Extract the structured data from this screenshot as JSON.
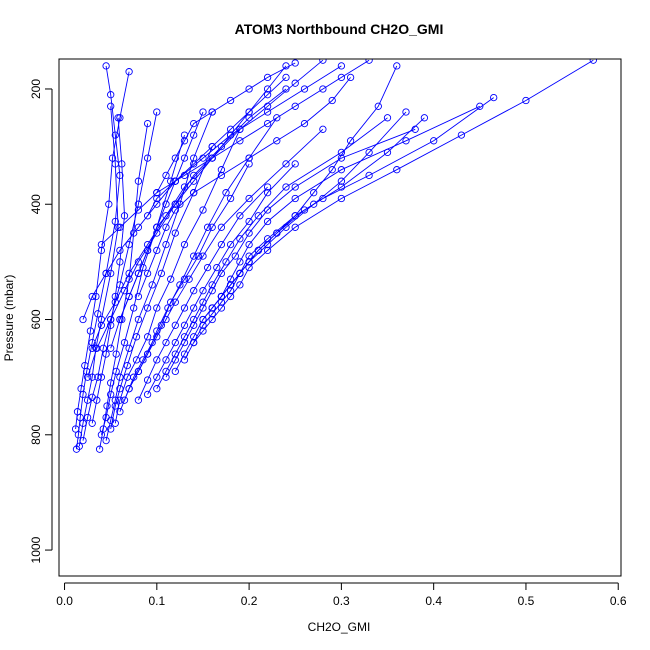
{
  "chart_data": {
    "type": "line",
    "title": "ATOM3 Northbound CH2O_GMI",
    "xlabel": "CH2O_GMI",
    "ylabel": "Pressure (mbar)",
    "xlim": [
      -0.006,
      0.603
    ],
    "ylim": [
      1045,
      148
    ],
    "y_reversed": true,
    "grid": false,
    "legend": "none",
    "x_ticks": [
      0.0,
      0.1,
      0.2,
      0.3,
      0.4,
      0.5,
      0.6
    ],
    "x_tick_labels": [
      "0.0",
      "0.1",
      "0.2",
      "0.3",
      "0.4",
      "0.5",
      "0.6"
    ],
    "y_ticks": [
      200,
      400,
      600,
      800,
      1000
    ],
    "y_tick_labels": [
      "200",
      "400",
      "600",
      "800",
      "1000"
    ],
    "series_color": "#0000ff",
    "marker": "open-circle",
    "series": [
      {
        "x": [
          0.013,
          0.015,
          0.017,
          0.02,
          0.024,
          0.03,
          0.036,
          0.045,
          0.055,
          0.06,
          0.055,
          0.05,
          0.045
        ],
        "y": [
          825,
          800,
          770,
          730,
          690,
          640,
          590,
          520,
          430,
          350,
          280,
          210,
          160
        ]
      },
      {
        "x": [
          0.012,
          0.014,
          0.018,
          0.022,
          0.028,
          0.034,
          0.04,
          0.048,
          0.052,
          0.06,
          0.07
        ],
        "y": [
          790,
          760,
          720,
          680,
          620,
          560,
          480,
          400,
          320,
          250,
          170
        ]
      },
      {
        "x": [
          0.016,
          0.02,
          0.025,
          0.03,
          0.034,
          0.04,
          0.05,
          0.058,
          0.055,
          0.05
        ],
        "y": [
          820,
          780,
          740,
          700,
          650,
          600,
          520,
          440,
          330,
          230
        ]
      },
      {
        "x": [
          0.02,
          0.025,
          0.03,
          0.036,
          0.042,
          0.05,
          0.06,
          0.07,
          0.08,
          0.09,
          0.1
        ],
        "y": [
          810,
          770,
          735,
          700,
          650,
          600,
          540,
          470,
          400,
          320,
          240
        ]
      },
      {
        "x": [
          0.03,
          0.035,
          0.04,
          0.045,
          0.05,
          0.055,
          0.06,
          0.065,
          0.062,
          0.058
        ],
        "y": [
          780,
          740,
          700,
          660,
          610,
          560,
          500,
          420,
          330,
          250
        ]
      },
      {
        "x": [
          0.038,
          0.042,
          0.046,
          0.05,
          0.056,
          0.062,
          0.07,
          0.075,
          0.08,
          0.09
        ],
        "y": [
          825,
          790,
          750,
          710,
          660,
          600,
          530,
          450,
          360,
          260
        ]
      },
      {
        "x": [
          0.04,
          0.045,
          0.05,
          0.056,
          0.065,
          0.075,
          0.085,
          0.1,
          0.115,
          0.13
        ],
        "y": [
          800,
          770,
          730,
          690,
          640,
          580,
          510,
          440,
          360,
          280
        ]
      },
      {
        "x": [
          0.045,
          0.05,
          0.055,
          0.06,
          0.07,
          0.08,
          0.095,
          0.11,
          0.125,
          0.14,
          0.16
        ],
        "y": [
          810,
          775,
          740,
          700,
          650,
          600,
          540,
          470,
          400,
          320,
          240
        ]
      },
      {
        "x": [
          0.05,
          0.055,
          0.06,
          0.068,
          0.078,
          0.09,
          0.105,
          0.12,
          0.14,
          0.16
        ],
        "y": [
          790,
          750,
          720,
          680,
          630,
          580,
          520,
          450,
          380,
          300
        ]
      },
      {
        "x": [
          0.055,
          0.06,
          0.068,
          0.078,
          0.09,
          0.1,
          0.115,
          0.13,
          0.15,
          0.17,
          0.19
        ],
        "y": [
          780,
          740,
          700,
          670,
          630,
          580,
          530,
          470,
          410,
          340,
          270
        ]
      },
      {
        "x": [
          0.06,
          0.07,
          0.08,
          0.09,
          0.1,
          0.112,
          0.125,
          0.14,
          0.155,
          0.175,
          0.2,
          0.23
        ],
        "y": [
          760,
          720,
          690,
          660,
          620,
          580,
          540,
          490,
          440,
          380,
          320,
          250
        ]
      },
      {
        "x": [
          0.065,
          0.075,
          0.085,
          0.095,
          0.105,
          0.115,
          0.13,
          0.145,
          0.16,
          0.18,
          0.2
        ],
        "y": [
          740,
          700,
          670,
          640,
          610,
          570,
          530,
          490,
          440,
          390,
          330
        ]
      },
      {
        "x": [
          0.07,
          0.08,
          0.09,
          0.1,
          0.11,
          0.12,
          0.135,
          0.15,
          0.17,
          0.2,
          0.24,
          0.28
        ],
        "y": [
          720,
          690,
          660,
          630,
          600,
          570,
          530,
          490,
          440,
          390,
          330,
          270
        ]
      },
      {
        "x": [
          0.08,
          0.09,
          0.1,
          0.11,
          0.12,
          0.13,
          0.14,
          0.155,
          0.17,
          0.19,
          0.22
        ],
        "y": [
          740,
          705,
          670,
          640,
          610,
          580,
          550,
          510,
          470,
          420,
          370
        ]
      },
      {
        "x": [
          0.09,
          0.1,
          0.11,
          0.12,
          0.13,
          0.14,
          0.15,
          0.165,
          0.18,
          0.2,
          0.22,
          0.25
        ],
        "y": [
          730,
          700,
          670,
          640,
          610,
          580,
          550,
          510,
          470,
          430,
          380,
          330
        ]
      },
      {
        "x": [
          0.1,
          0.11,
          0.12,
          0.13,
          0.14,
          0.15,
          0.16,
          0.175,
          0.19,
          0.21,
          0.24,
          0.3,
          0.35
        ],
        "y": [
          720,
          690,
          660,
          630,
          600,
          570,
          540,
          500,
          460,
          420,
          370,
          310,
          250
        ]
      },
      {
        "x": [
          0.11,
          0.12,
          0.13,
          0.14,
          0.15,
          0.16,
          0.17,
          0.185,
          0.2,
          0.22,
          0.25,
          0.3,
          0.38
        ],
        "y": [
          700,
          670,
          640,
          610,
          580,
          550,
          520,
          490,
          450,
          410,
          370,
          320,
          270
        ]
      },
      {
        "x": [
          0.12,
          0.13,
          0.14,
          0.15,
          0.16,
          0.17,
          0.18,
          0.19,
          0.2,
          0.22,
          0.25,
          0.3,
          0.37,
          0.45
        ],
        "y": [
          690,
          660,
          630,
          600,
          580,
          560,
          530,
          500,
          470,
          430,
          390,
          340,
          290,
          230
        ]
      },
      {
        "x": [
          0.13,
          0.14,
          0.15,
          0.16,
          0.17,
          0.18,
          0.19,
          0.2,
          0.22,
          0.25,
          0.28,
          0.33,
          0.4,
          0.465
        ],
        "y": [
          670,
          640,
          610,
          590,
          570,
          550,
          520,
          490,
          460,
          420,
          390,
          350,
          290,
          215
        ]
      },
      {
        "x": [
          0.14,
          0.15,
          0.16,
          0.17,
          0.18,
          0.19,
          0.2,
          0.22,
          0.25,
          0.3,
          0.36,
          0.43,
          0.5,
          0.573
        ],
        "y": [
          640,
          620,
          600,
          580,
          560,
          540,
          510,
          480,
          440,
          390,
          340,
          280,
          220,
          150
        ]
      },
      {
        "x": [
          0.15,
          0.16,
          0.17,
          0.18,
          0.19,
          0.2,
          0.21,
          0.23,
          0.26,
          0.3,
          0.35,
          0.39
        ],
        "y": [
          600,
          580,
          560,
          540,
          520,
          500,
          480,
          450,
          410,
          370,
          310,
          250
        ]
      },
      {
        "x": [
          0.16,
          0.17,
          0.18,
          0.19,
          0.2,
          0.22,
          0.24,
          0.27,
          0.3,
          0.33,
          0.37
        ],
        "y": [
          580,
          560,
          540,
          520,
          500,
          470,
          440,
          400,
          360,
          310,
          240
        ]
      },
      {
        "x": [
          0.17,
          0.18,
          0.19,
          0.2,
          0.21,
          0.23,
          0.25,
          0.27,
          0.29,
          0.31,
          0.34,
          0.36
        ],
        "y": [
          560,
          540,
          520,
          500,
          480,
          450,
          420,
          380,
          340,
          290,
          230,
          160
        ]
      },
      {
        "x": [
          0.02,
          0.03,
          0.045,
          0.06,
          0.08,
          0.1,
          0.12,
          0.15,
          0.18,
          0.22,
          0.26,
          0.3
        ],
        "y": [
          600,
          560,
          520,
          480,
          440,
          400,
          360,
          320,
          280,
          240,
          200,
          160
        ]
      },
      {
        "x": [
          0.03,
          0.04,
          0.055,
          0.07,
          0.09,
          0.11,
          0.13,
          0.16,
          0.19,
          0.22,
          0.25,
          0.28
        ],
        "y": [
          650,
          610,
          570,
          520,
          470,
          420,
          370,
          320,
          270,
          230,
          190,
          150
        ]
      },
      {
        "x": [
          0.025,
          0.035,
          0.05,
          0.065,
          0.08,
          0.1,
          0.12,
          0.14,
          0.17,
          0.2,
          0.24
        ],
        "y": [
          700,
          650,
          600,
          550,
          500,
          450,
          400,
          350,
          300,
          250,
          200
        ]
      },
      {
        "x": [
          0.05,
          0.06,
          0.07,
          0.08,
          0.09,
          0.1,
          0.11,
          0.12,
          0.13,
          0.14,
          0.15
        ],
        "y": [
          650,
          600,
          560,
          520,
          480,
          440,
          400,
          360,
          320,
          280,
          240
        ]
      },
      {
        "x": [
          0.06,
          0.07,
          0.08,
          0.09,
          0.1,
          0.12,
          0.14,
          0.16,
          0.18,
          0.2,
          0.22,
          0.24
        ],
        "y": [
          600,
          560,
          520,
          480,
          440,
          400,
          360,
          320,
          280,
          240,
          200,
          160
        ]
      },
      {
        "x": [
          0.08,
          0.09,
          0.1,
          0.11,
          0.12,
          0.14,
          0.17,
          0.2,
          0.23,
          0.26,
          0.29,
          0.31
        ],
        "y": [
          560,
          520,
          480,
          440,
          410,
          380,
          350,
          320,
          290,
          260,
          220,
          180
        ]
      },
      {
        "x": [
          0.04,
          0.06,
          0.08,
          0.1,
          0.13,
          0.16,
          0.19,
          0.22,
          0.25,
          0.28,
          0.3,
          0.33
        ],
        "y": [
          470,
          440,
          410,
          380,
          350,
          320,
          290,
          260,
          230,
          200,
          180,
          150
        ]
      },
      {
        "x": [
          0.09,
          0.1,
          0.12,
          0.14,
          0.16,
          0.18,
          0.2,
          0.22,
          0.24
        ],
        "y": [
          420,
          390,
          360,
          330,
          300,
          270,
          240,
          210,
          180
        ]
      },
      {
        "x": [
          0.1,
          0.11,
          0.12,
          0.13,
          0.14,
          0.16,
          0.18,
          0.2,
          0.22,
          0.25
        ],
        "y": [
          380,
          350,
          320,
          290,
          260,
          240,
          220,
          200,
          180,
          155
        ]
      }
    ]
  }
}
